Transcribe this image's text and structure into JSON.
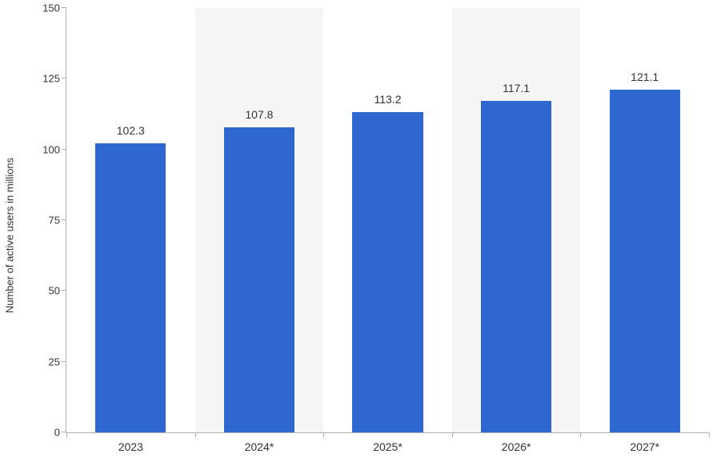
{
  "chart": {
    "type": "bar",
    "y_axis_label": "Number of active users in millions",
    "categories": [
      "2023",
      "2024*",
      "2025*",
      "2026*",
      "2027*"
    ],
    "values": [
      102.3,
      107.8,
      113.2,
      117.1,
      121.1
    ],
    "bar_color": "#2f67d0",
    "alt_band_color": "#f5f5f5",
    "background_color": "#ffffff",
    "axis_line_color": "#b0b0b0",
    "text_color": "#333333",
    "ylim": [
      0,
      150
    ],
    "yticks": [
      0,
      25,
      50,
      75,
      100,
      125,
      150
    ],
    "bar_width_ratio": 0.55,
    "label_fontsize": 13,
    "value_label_fontsize": 14,
    "tick_fontsize": 13
  }
}
